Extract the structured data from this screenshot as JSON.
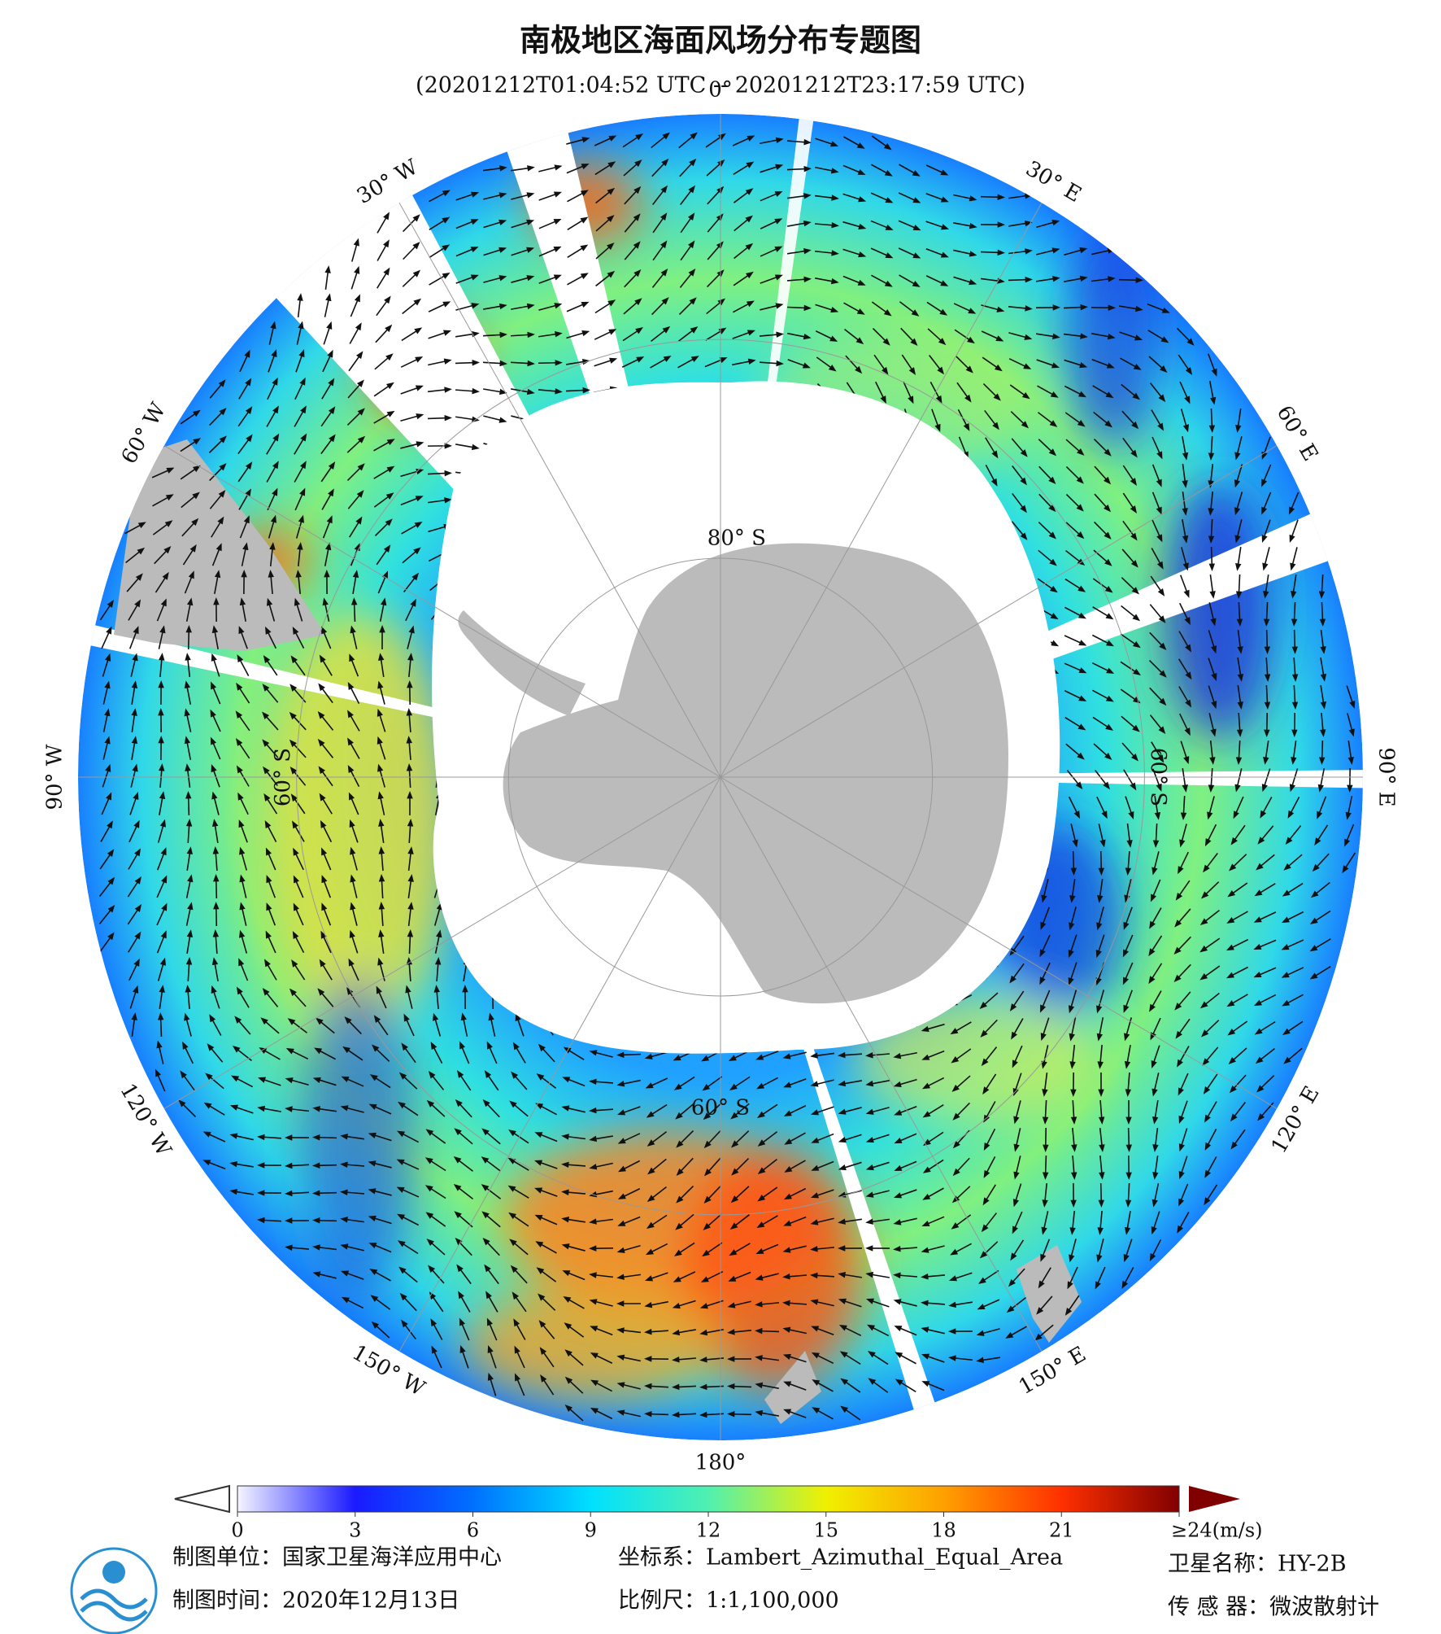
{
  "header": {
    "title": "南极地区海面风场分布专题图",
    "subtitle": "(20201212T01:04:52 UTC -- 20201212T23:17:59 UTC)"
  },
  "map": {
    "longitude_labels": [
      "0°",
      "30° E",
      "60° E",
      "90° E",
      "120° E",
      "150° E",
      "180°",
      "150° W",
      "120° W",
      "90° W",
      "60° W",
      "30° W"
    ],
    "latitude_labels": [
      "80° S",
      "60° S",
      "60° S",
      "60° S"
    ]
  },
  "colorbar": {
    "range": [
      0,
      24
    ],
    "ticks": [
      0,
      3,
      6,
      9,
      12,
      15,
      18,
      21,
      {
        "value": 24,
        "label": "≥24(m/s)"
      }
    ],
    "colors": [
      "#f4f4ff",
      "#1a1aff",
      "#0070ff",
      "#00e0ff",
      "#50f0b0",
      "#f0f000",
      "#ffa000",
      "#ff3000",
      "#800000"
    ]
  },
  "footer": {
    "rows": [
      [
        "制图单位：国家卫星海洋应用中心",
        "坐标系：Lambert_Azimuthal_Equal_Area",
        "卫星名称：HY-2B"
      ],
      [
        "制图时间：2020年12月13日",
        "比例尺：1:1,100,000",
        "传 感 器：微波散射计"
      ]
    ]
  }
}
